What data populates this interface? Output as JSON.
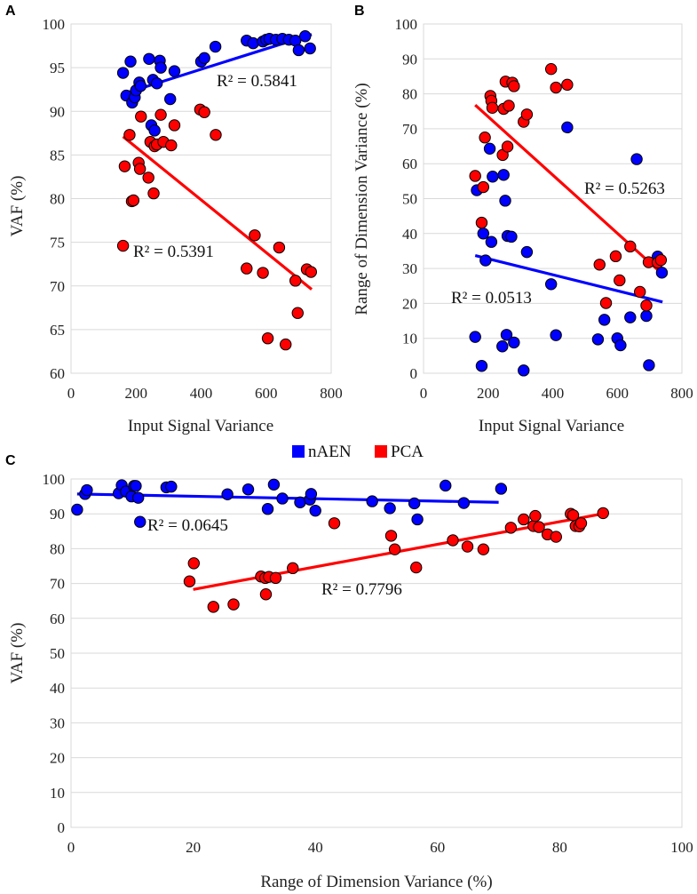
{
  "colors": {
    "nAEN": "#0000ff",
    "PCA": "#ff0000"
  },
  "legend": [
    {
      "name": "nAEN",
      "color": "#0000ff"
    },
    {
      "name": "PCA",
      "color": "#ff0000"
    }
  ],
  "chart_data": [
    {
      "panel": "A",
      "type": "scatter",
      "xlabel": "Input Signal Variance",
      "ylabel": "VAF (%)",
      "xlim": [
        0,
        800
      ],
      "ylim": [
        60,
        100
      ],
      "xticks": [
        0,
        200,
        400,
        600,
        800
      ],
      "yticks": [
        60,
        65,
        70,
        75,
        80,
        85,
        90,
        95,
        100
      ],
      "series": [
        {
          "name": "nAEN",
          "color": "#0000ff",
          "r2": "R² = 0.5841",
          "trend": [
            [
              160,
              92.0
            ],
            [
              740,
              98.8
            ]
          ],
          "points": [
            [
              160,
              94.4
            ],
            [
              170,
              91.8
            ],
            [
              183,
              95.7
            ],
            [
              188,
              91.0
            ],
            [
              196,
              91.6
            ],
            [
              200,
              92.4
            ],
            [
              210,
              93.3
            ],
            [
              214,
              92.9
            ],
            [
              240,
              96.0
            ],
            [
              247,
              88.4
            ],
            [
              252,
              93.6
            ],
            [
              257,
              87.8
            ],
            [
              264,
              93.2
            ],
            [
              273,
              95.8
            ],
            [
              276,
              95.0
            ],
            [
              305,
              91.4
            ],
            [
              318,
              94.6
            ],
            [
              400,
              95.7
            ],
            [
              410,
              96.1
            ],
            [
              444,
              97.4
            ],
            [
              540,
              98.1
            ],
            [
              560,
              97.8
            ],
            [
              590,
              98.0
            ],
            [
              600,
              98.2
            ],
            [
              610,
              98.3
            ],
            [
              630,
              98.2
            ],
            [
              650,
              98.3
            ],
            [
              670,
              98.2
            ],
            [
              690,
              98.1
            ],
            [
              700,
              97.0
            ],
            [
              720,
              98.6
            ],
            [
              735,
              97.2
            ]
          ]
        },
        {
          "name": "PCA",
          "color": "#ff0000",
          "r2": "R² = 0.5391",
          "trend": [
            [
              160,
              87.1
            ],
            [
              740,
              69.6
            ]
          ],
          "points": [
            [
              160,
              74.6
            ],
            [
              165,
              83.7
            ],
            [
              180,
              87.3
            ],
            [
              187,
              79.7
            ],
            [
              192,
              79.8
            ],
            [
              208,
              84.1
            ],
            [
              212,
              83.4
            ],
            [
              215,
              89.4
            ],
            [
              238,
              82.4
            ],
            [
              244,
              86.5
            ],
            [
              254,
              80.6
            ],
            [
              257,
              86.0
            ],
            [
              264,
              86.2
            ],
            [
              276,
              89.6
            ],
            [
              284,
              86.5
            ],
            [
              308,
              86.1
            ],
            [
              318,
              88.4
            ],
            [
              397,
              90.2
            ],
            [
              410,
              89.9
            ],
            [
              445,
              87.3
            ],
            [
              540,
              72.0
            ],
            [
              565,
              75.8
            ],
            [
              590,
              71.5
            ],
            [
              605,
              64.0
            ],
            [
              640,
              74.4
            ],
            [
              660,
              63.3
            ],
            [
              690,
              70.6
            ],
            [
              697,
              66.9
            ],
            [
              725,
              71.9
            ],
            [
              738,
              71.6
            ]
          ]
        }
      ],
      "r2_labels": [
        "R² = 0.5841",
        "R² = 0.5391"
      ]
    },
    {
      "panel": "B",
      "type": "scatter",
      "xlabel": "Input Signal Variance",
      "ylabel": "Range of Dimension Variance (%)",
      "xlim": [
        0,
        800
      ],
      "ylim": [
        0,
        100
      ],
      "xticks": [
        0,
        200,
        400,
        600,
        800
      ],
      "yticks": [
        0,
        10,
        20,
        30,
        40,
        50,
        60,
        70,
        80,
        90,
        100
      ],
      "series": [
        {
          "name": "nAEN",
          "color": "#0000ff",
          "r2": "R² = 0.0513",
          "trend": [
            [
              160,
              33.7
            ],
            [
              740,
              20.4
            ]
          ],
          "points": [
            [
              160,
              10.4
            ],
            [
              165,
              52.4
            ],
            [
              180,
              2.1
            ],
            [
              185,
              40.0
            ],
            [
              192,
              32.3
            ],
            [
              205,
              64.3
            ],
            [
              210,
              37.6
            ],
            [
              214,
              56.3
            ],
            [
              244,
              7.7
            ],
            [
              248,
              56.8
            ],
            [
              253,
              49.4
            ],
            [
              257,
              11.0
            ],
            [
              260,
              39.3
            ],
            [
              272,
              39.1
            ],
            [
              280,
              8.8
            ],
            [
              310,
              0.8
            ],
            [
              320,
              34.7
            ],
            [
              395,
              25.5
            ],
            [
              410,
              10.9
            ],
            [
              445,
              70.4
            ],
            [
              540,
              9.7
            ],
            [
              560,
              15.3
            ],
            [
              600,
              10.0
            ],
            [
              610,
              8.0
            ],
            [
              640,
              16.0
            ],
            [
              660,
              61.3
            ],
            [
              690,
              16.4
            ],
            [
              698,
              2.3
            ],
            [
              725,
              33.4
            ],
            [
              738,
              28.8
            ]
          ]
        },
        {
          "name": "PCA",
          "color": "#ff0000",
          "r2": "R² = 0.5263",
          "trend": [
            [
              160,
              76.8
            ],
            [
              740,
              28.4
            ]
          ],
          "points": [
            [
              160,
              56.5
            ],
            [
              180,
              43.1
            ],
            [
              185,
              53.3
            ],
            [
              190,
              67.5
            ],
            [
              207,
              79.4
            ],
            [
              210,
              78.0
            ],
            [
              213,
              76.0
            ],
            [
              245,
              62.5
            ],
            [
              248,
              75.7
            ],
            [
              254,
              83.5
            ],
            [
              260,
              64.9
            ],
            [
              264,
              76.6
            ],
            [
              275,
              83.2
            ],
            [
              280,
              82.2
            ],
            [
              310,
              72.0
            ],
            [
              320,
              74.1
            ],
            [
              395,
              87.1
            ],
            [
              410,
              81.8
            ],
            [
              445,
              82.6
            ],
            [
              545,
              31.1
            ],
            [
              565,
              20.1
            ],
            [
              595,
              33.5
            ],
            [
              607,
              26.6
            ],
            [
              640,
              36.3
            ],
            [
              670,
              23.3
            ],
            [
              690,
              19.4
            ],
            [
              697,
              31.8
            ],
            [
              725,
              31.7
            ],
            [
              735,
              32.4
            ]
          ]
        }
      ],
      "r2_labels": [
        "R² = 0.5263",
        "R² = 0.0513"
      ]
    },
    {
      "panel": "C",
      "type": "scatter",
      "xlabel": "Range of Dimension Variance (%)",
      "ylabel": "VAF (%)",
      "xlim": [
        0,
        100
      ],
      "ylim": [
        0,
        100
      ],
      "xticks": [
        0,
        20,
        40,
        60,
        80,
        100
      ],
      "yticks": [
        0,
        10,
        20,
        30,
        40,
        50,
        60,
        70,
        80,
        90,
        100
      ],
      "series": [
        {
          "name": "nAEN",
          "color": "#0000ff",
          "r2": "R² = 0.0645",
          "trend": [
            [
              1,
              95.7
            ],
            [
              70,
              93.3
            ]
          ],
          "points": [
            [
              1.0,
              91.2
            ],
            [
              2.3,
              95.7
            ],
            [
              2.6,
              96.8
            ],
            [
              7.8,
              95.9
            ],
            [
              8.3,
              98.2
            ],
            [
              9.0,
              96.4
            ],
            [
              9.9,
              95.0
            ],
            [
              10.3,
              98.0
            ],
            [
              10.6,
              98.0
            ],
            [
              11.0,
              94.6
            ],
            [
              11.3,
              87.7
            ],
            [
              15.6,
              97.6
            ],
            [
              16.4,
              97.8
            ],
            [
              25.6,
              95.6
            ],
            [
              29.0,
              97.0
            ],
            [
              32.2,
              91.4
            ],
            [
              33.2,
              98.4
            ],
            [
              34.6,
              94.4
            ],
            [
              37.5,
              93.3
            ],
            [
              39.1,
              94.1
            ],
            [
              39.3,
              95.7
            ],
            [
              40.0,
              90.9
            ],
            [
              49.3,
              93.6
            ],
            [
              52.2,
              91.6
            ],
            [
              56.2,
              93.0
            ],
            [
              56.7,
              88.4
            ],
            [
              61.3,
              98.1
            ],
            [
              64.3,
              93.1
            ],
            [
              70.4,
              97.2
            ]
          ]
        },
        {
          "name": "PCA",
          "color": "#ff0000",
          "r2": "R² = 0.7796",
          "trend": [
            [
              20,
              68.3
            ],
            [
              87,
              90.0
            ]
          ],
          "points": [
            [
              19.4,
              70.6
            ],
            [
              20.1,
              75.8
            ],
            [
              23.3,
              63.3
            ],
            [
              26.6,
              64.0
            ],
            [
              31.1,
              72.0
            ],
            [
              31.8,
              71.6
            ],
            [
              31.9,
              66.9
            ],
            [
              32.4,
              71.9
            ],
            [
              33.5,
              71.6
            ],
            [
              36.3,
              74.4
            ],
            [
              43.1,
              87.3
            ],
            [
              52.4,
              83.7
            ],
            [
              53.0,
              79.8
            ],
            [
              56.5,
              74.6
            ],
            [
              62.5,
              82.4
            ],
            [
              64.9,
              80.6
            ],
            [
              67.5,
              79.8
            ],
            [
              72.0,
              86.0
            ],
            [
              74.1,
              88.4
            ],
            [
              75.7,
              86.5
            ],
            [
              76.0,
              89.4
            ],
            [
              76.6,
              86.2
            ],
            [
              78.0,
              84.1
            ],
            [
              79.4,
              83.4
            ],
            [
              81.8,
              90.0
            ],
            [
              82.2,
              89.6
            ],
            [
              82.6,
              86.5
            ],
            [
              83.2,
              86.4
            ],
            [
              83.5,
              87.3
            ],
            [
              87.1,
              90.2
            ]
          ]
        }
      ],
      "r2_labels": [
        "R² = 0.0645",
        "R² = 0.7796"
      ]
    }
  ]
}
